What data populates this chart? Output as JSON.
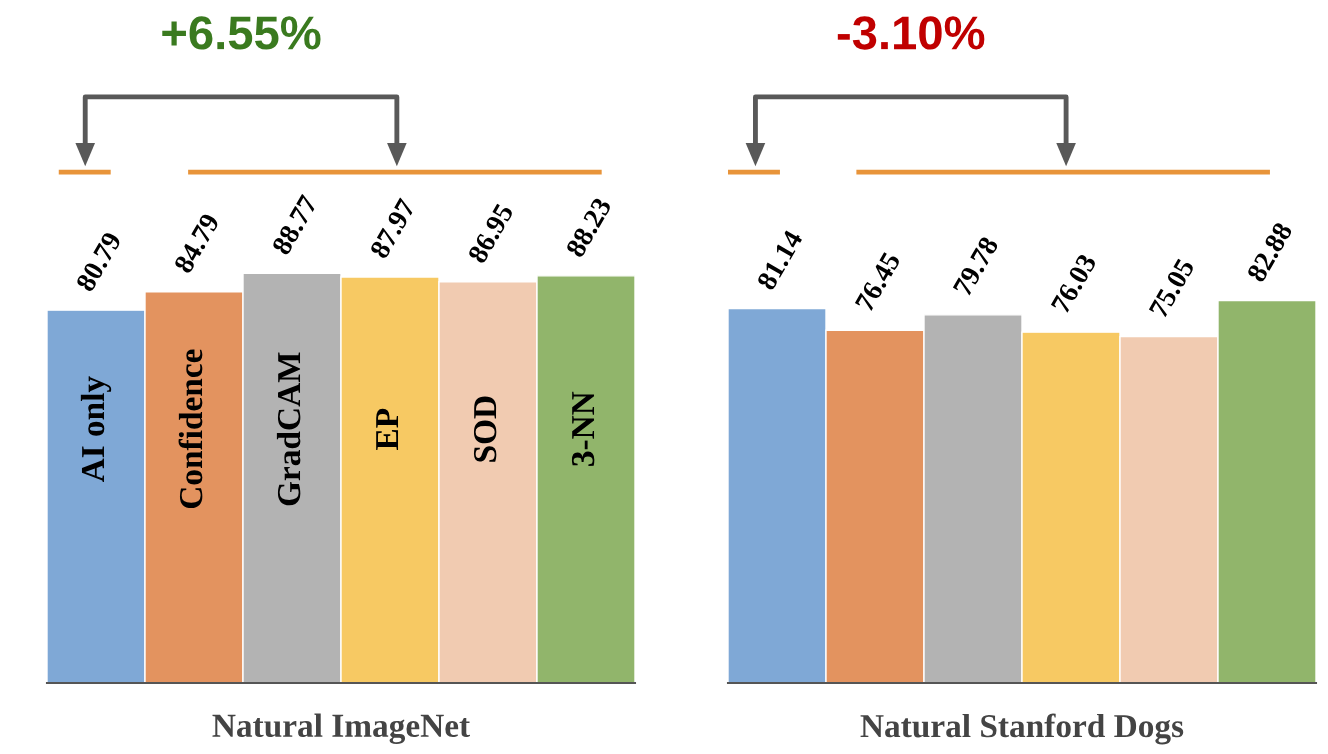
{
  "chart_data": [
    {
      "type": "bar",
      "xlabel": "Natural ImageNet",
      "annotations": [
        "+6.55%"
      ],
      "categories": [
        "AI only",
        "Confidence",
        "GradCAM",
        "EP",
        "SOD",
        "3-NN"
      ],
      "values": [
        80.79,
        84.79,
        88.77,
        87.97,
        86.95,
        88.23
      ],
      "colors": [
        "#7fa8d6",
        "#e3935f",
        "#b3b3b3",
        "#f7c963",
        "#f1cbb1",
        "#91b56b"
      ],
      "data_labels": true
    },
    {
      "type": "bar",
      "xlabel": "Natural Stanford Dogs",
      "annotations": [
        "-3.10%"
      ],
      "categories": [
        null,
        null,
        null,
        null,
        null,
        null
      ],
      "values": [
        81.14,
        76.45,
        79.78,
        76.03,
        75.05,
        82.88
      ],
      "colors": [
        "#7fa8d6",
        "#e3935f",
        "#b3b3b3",
        "#f7c963",
        "#f1cbb1",
        "#91b56b"
      ],
      "data_labels": true
    }
  ]
}
